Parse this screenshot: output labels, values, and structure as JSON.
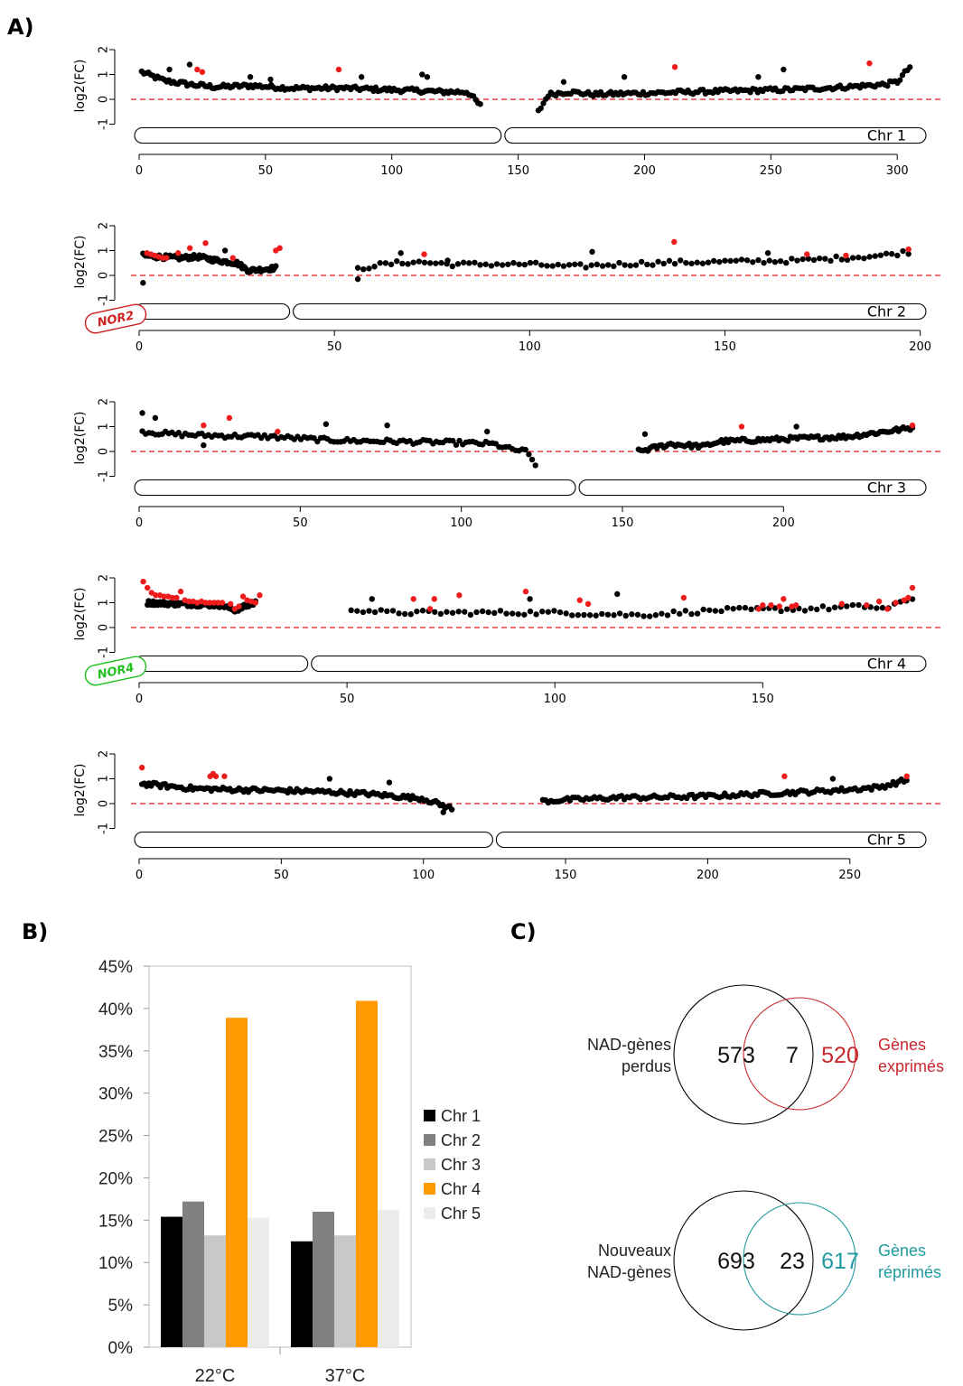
{
  "labels": {
    "a": "A)",
    "b": "B)",
    "c": "C)"
  },
  "colors": {
    "black": "#000000",
    "red": "#ee1c1c",
    "nor2": "#cc2020",
    "nor4": "#1fc01f",
    "chr1": "#000000",
    "chr2": "#808080",
    "chr3": "#c8c8c8",
    "chr4": "#ff9a00",
    "chr5": "#ececec",
    "venn_red": "#c9282d",
    "venn_teal": "#1f9aa0"
  },
  "chart_data": [
    {
      "type": "scatter",
      "ylabel": "log2(FC)",
      "yticks": [
        "-1",
        "0",
        "1",
        "2"
      ],
      "reference_line": 0,
      "chromosomes": [
        {
          "name": "Chr 1",
          "xmax": 305,
          "centromere": 144,
          "xticks": [
            "0",
            "50",
            "100",
            "150",
            "200",
            "250",
            "300"
          ],
          "nor_label": "",
          "segments": [
            {
              "x": [
                1,
                10,
                20,
                30,
                45,
                60,
                80,
                95,
                110,
                120,
                130,
                135
              ],
              "y": [
                1.1,
                0.75,
                0.6,
                0.5,
                0.55,
                0.45,
                0.45,
                0.4,
                0.35,
                0.3,
                0.3,
                -0.25
              ]
            },
            {
              "x": [
                158,
                162,
                170,
                180,
                200,
                220,
                240,
                260,
                280,
                295,
                300,
                305
              ],
              "y": [
                -0.5,
                0.2,
                0.3,
                0.2,
                0.25,
                0.3,
                0.35,
                0.4,
                0.5,
                0.6,
                0.7,
                1.3
              ]
            }
          ],
          "spikes": [
            [
              12,
              1.2
            ],
            [
              20,
              1.4
            ],
            [
              44,
              0.9
            ],
            [
              52,
              0.8
            ],
            [
              88,
              0.9
            ],
            [
              112,
              1.0
            ],
            [
              114,
              0.9
            ],
            [
              168,
              0.7
            ],
            [
              192,
              0.9
            ],
            [
              245,
              0.9
            ],
            [
              255,
              1.2
            ]
          ],
          "red": [
            [
              23,
              1.2
            ],
            [
              25,
              1.1
            ],
            [
              79,
              1.2
            ],
            [
              212,
              1.3
            ],
            [
              289,
              1.45
            ]
          ],
          "n": 300
        },
        {
          "name": "Chr 2",
          "xmax": 197,
          "centromere": 39,
          "xticks": [
            "0",
            "50",
            "100",
            "150",
            "200"
          ],
          "nor_label": "NOR2",
          "segments": [
            {
              "x": [
                1,
                5,
                10,
                15,
                20,
                25,
                28,
                32,
                35
              ],
              "y": [
                0.8,
                0.75,
                0.7,
                0.75,
                0.6,
                0.5,
                0.2,
                0.25,
                0.3
              ]
            },
            {
              "x": [
                56,
                60,
                70,
                80,
                100,
                110,
                130,
                150,
                170,
                190,
                197
              ],
              "y": [
                0.25,
                0.4,
                0.55,
                0.45,
                0.45,
                0.35,
                0.5,
                0.55,
                0.6,
                0.8,
                0.95
              ]
            }
          ],
          "spikes": [
            [
              1,
              -0.3
            ],
            [
              22,
              1.0
            ],
            [
              56,
              -0.15
            ],
            [
              67,
              0.9
            ],
            [
              79,
              0.6
            ],
            [
              116,
              0.95
            ],
            [
              161,
              0.9
            ]
          ],
          "red": [
            [
              2,
              0.9
            ],
            [
              3,
              0.85
            ],
            [
              4,
              0.8
            ],
            [
              5,
              0.75
            ],
            [
              6,
              0.7
            ],
            [
              7,
              0.7
            ],
            [
              10,
              0.9
            ],
            [
              13,
              1.1
            ],
            [
              17,
              1.3
            ],
            [
              24,
              0.7
            ],
            [
              35,
              1.0
            ],
            [
              36,
              1.1
            ],
            [
              73,
              0.85
            ],
            [
              137,
              1.35
            ],
            [
              171,
              0.85
            ],
            [
              181,
              0.8
            ],
            [
              197,
              1.05
            ]
          ],
          "n": 200
        },
        {
          "name": "Chr 3",
          "xmax": 240,
          "centromere": 136,
          "xticks": [
            "0",
            "50",
            "100",
            "150",
            "200"
          ],
          "nor_label": "",
          "segments": [
            {
              "x": [
                1,
                10,
                20,
                40,
                60,
                80,
                100,
                110,
                115,
                120,
                123
              ],
              "y": [
                0.8,
                0.7,
                0.65,
                0.6,
                0.45,
                0.4,
                0.35,
                0.3,
                0.1,
                0.0,
                -0.5
              ]
            },
            {
              "x": [
                155,
                165,
                175,
                180,
                200,
                220,
                240
              ],
              "y": [
                0.0,
                0.3,
                0.2,
                0.4,
                0.5,
                0.6,
                0.95
              ]
            }
          ],
          "spikes": [
            [
              1,
              1.55
            ],
            [
              5,
              1.35
            ],
            [
              20,
              0.25
            ],
            [
              58,
              1.1
            ],
            [
              77,
              1.05
            ],
            [
              108,
              0.8
            ],
            [
              157,
              0.7
            ],
            [
              204,
              1.0
            ]
          ],
          "red": [
            [
              20,
              1.05
            ],
            [
              28,
              1.35
            ],
            [
              43,
              0.8
            ],
            [
              187,
              1.0
            ],
            [
              240,
              1.05
            ]
          ],
          "n": 240
        },
        {
          "name": "Chr 4",
          "xmax": 186,
          "centromere": 41,
          "xticks": [
            "0",
            "50",
            "100",
            "150"
          ],
          "nor_label": "NOR4",
          "segments": [
            {
              "x": [
                2,
                10,
                20,
                23,
                28
              ],
              "y": [
                1.0,
                0.95,
                0.9,
                0.7,
                1.0
              ]
            },
            {
              "x": [
                51,
                60,
                80,
                100,
                110,
                120,
                140,
                160,
                175,
                180,
                186
              ],
              "y": [
                0.75,
                0.6,
                0.6,
                0.6,
                0.55,
                0.5,
                0.7,
                0.75,
                0.85,
                0.75,
                1.2
              ]
            }
          ],
          "spikes": [
            [
              56,
              1.15
            ],
            [
              94,
              1.15
            ],
            [
              115,
              1.35
            ]
          ],
          "red": [
            [
              1,
              1.85
            ],
            [
              2,
              1.6
            ],
            [
              3,
              1.4
            ],
            [
              4,
              1.3
            ],
            [
              5,
              1.3
            ],
            [
              6,
              1.25
            ],
            [
              7,
              1.25
            ],
            [
              8,
              1.2
            ],
            [
              9,
              1.2
            ],
            [
              10,
              1.45
            ],
            [
              11,
              1.1
            ],
            [
              12,
              1.05
            ],
            [
              13,
              1.05
            ],
            [
              14,
              1.0
            ],
            [
              15,
              1.05
            ],
            [
              16,
              1.0
            ],
            [
              17,
              1.0
            ],
            [
              18,
              1.0
            ],
            [
              19,
              1.0
            ],
            [
              20,
              1.0
            ],
            [
              22,
              0.95
            ],
            [
              23,
              0.75
            ],
            [
              24,
              0.85
            ],
            [
              25,
              1.25
            ],
            [
              26,
              1.1
            ],
            [
              27,
              1.05
            ],
            [
              28,
              1.0
            ],
            [
              29,
              1.3
            ],
            [
              66,
              1.15
            ],
            [
              70,
              0.75
            ],
            [
              71,
              1.15
            ],
            [
              77,
              1.3
            ],
            [
              93,
              1.45
            ],
            [
              106,
              1.1
            ],
            [
              108,
              0.95
            ],
            [
              131,
              1.2
            ],
            [
              149,
              0.75
            ],
            [
              150,
              0.9
            ],
            [
              152,
              0.9
            ],
            [
              154,
              0.85
            ],
            [
              155,
              1.15
            ],
            [
              157,
              0.85
            ],
            [
              158,
              0.9
            ],
            [
              169,
              0.95
            ],
            [
              175,
              0.9
            ],
            [
              178,
              1.05
            ],
            [
              180,
              0.75
            ],
            [
              182,
              1.0
            ],
            [
              184,
              1.1
            ],
            [
              185,
              1.2
            ],
            [
              186,
              1.6
            ]
          ],
          "n": 190
        },
        {
          "name": "Chr 5",
          "xmax": 270,
          "centromere": 125,
          "xticks": [
            "0",
            "50",
            "100",
            "150",
            "200",
            "250"
          ],
          "nor_label": "",
          "segments": [
            {
              "x": [
                1,
                20,
                40,
                60,
                80,
                90,
                100,
                105,
                110
              ],
              "y": [
                0.8,
                0.6,
                0.55,
                0.5,
                0.4,
                0.3,
                0.2,
                0.0,
                -0.2
              ]
            },
            {
              "x": [
                142,
                150,
                160,
                170,
                180,
                200,
                220,
                240,
                260,
                270
              ],
              "y": [
                0.1,
                0.15,
                0.2,
                0.25,
                0.25,
                0.3,
                0.4,
                0.5,
                0.65,
                0.95
              ]
            }
          ],
          "spikes": [
            [
              67,
              1.0
            ],
            [
              88,
              0.85
            ],
            [
              107,
              -0.35
            ],
            [
              244,
              1.0
            ]
          ],
          "red": [
            [
              1,
              1.45
            ],
            [
              25,
              1.1
            ],
            [
              26,
              1.2
            ],
            [
              27,
              1.1
            ],
            [
              30,
              1.1
            ],
            [
              227,
              1.1
            ],
            [
              270,
              1.1
            ]
          ],
          "n": 270
        }
      ]
    },
    {
      "type": "bar",
      "categories": [
        "22°C",
        "37°C"
      ],
      "series": [
        {
          "name": "Chr  1",
          "values": [
            15.4,
            12.5
          ]
        },
        {
          "name": "Chr  2",
          "values": [
            17.2,
            16.0
          ]
        },
        {
          "name": "Chr  3",
          "values": [
            13.2,
            13.2
          ]
        },
        {
          "name": "Chr  4",
          "values": [
            38.9,
            40.9
          ]
        },
        {
          "name": "Chr  5",
          "values": [
            15.3,
            16.2
          ]
        }
      ],
      "yticks": [
        "0%",
        "5%",
        "10%",
        "15%",
        "20%",
        "25%",
        "30%",
        "35%",
        "40%",
        "45%"
      ],
      "ylim": [
        0,
        45
      ],
      "legend": "right"
    },
    {
      "type": "venn",
      "diagrams": [
        {
          "left_label": [
            "NAD-gènes",
            "perdus"
          ],
          "left": "573",
          "overlap": "7",
          "right": "520",
          "right_label": [
            "Gènes",
            "exprimés"
          ],
          "color": "red"
        },
        {
          "left_label": [
            "Nouveaux",
            "NAD-gènes"
          ],
          "left": "693",
          "overlap": "23",
          "right": "617",
          "right_label": [
            "Gènes",
            "réprimés"
          ],
          "color": "teal"
        }
      ]
    }
  ]
}
